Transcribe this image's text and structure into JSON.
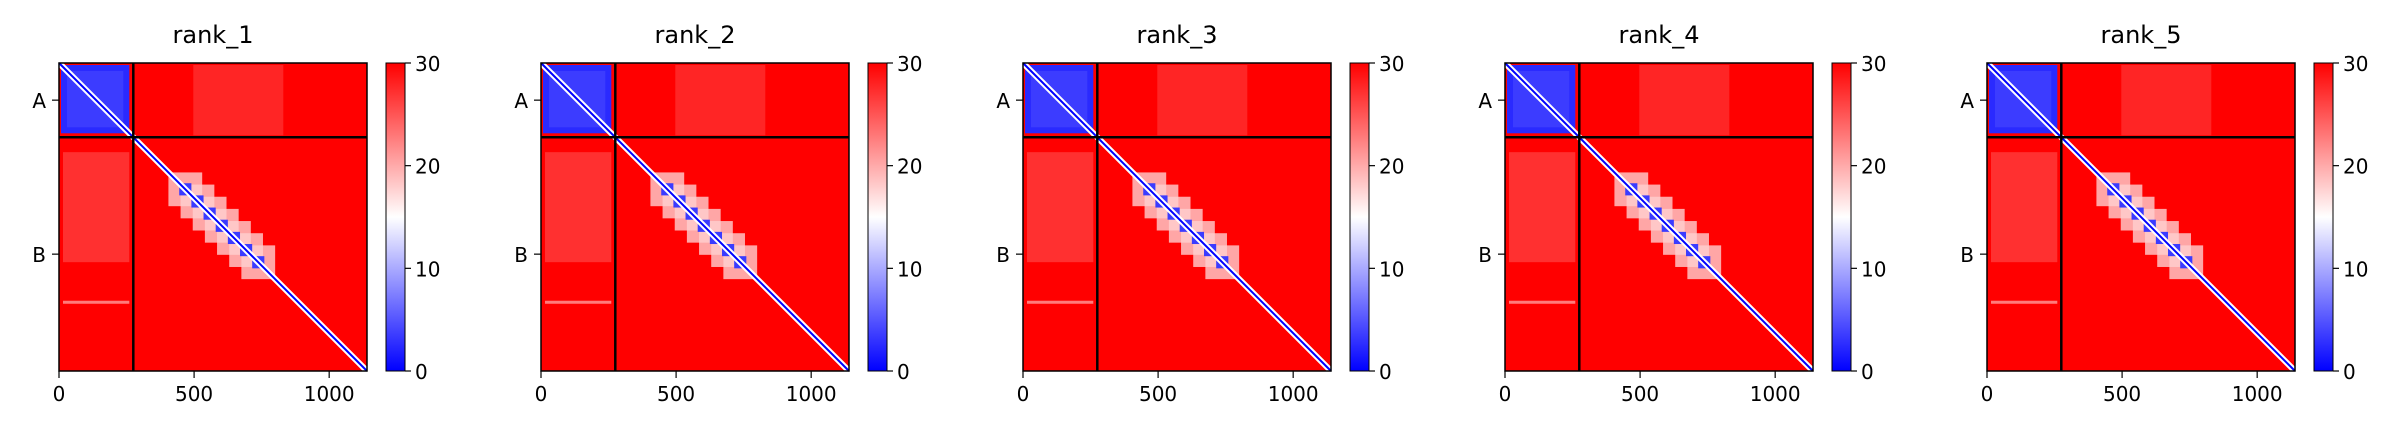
{
  "colors": {
    "low": "#0000ff",
    "mid": "#ffffff",
    "high": "#ff0000",
    "frame": "#000000",
    "background": "#ffffff"
  },
  "chart_data": [
    {
      "type": "heatmap",
      "title": "rank_1",
      "xlabel": "",
      "ylabel": "",
      "x_ticks": [
        0,
        500,
        1000
      ],
      "xlim": [
        0,
        1140
      ],
      "n_residues": 1140,
      "chain_boundary": 275,
      "y_tick_labels": [
        "A",
        "B"
      ],
      "colorbar": {
        "min": 0,
        "max": 30,
        "ticks": [
          0,
          10,
          20,
          30
        ]
      },
      "domain_blocks": [
        [
          0,
          275
        ],
        [
          445,
          760
        ]
      ],
      "gridlines": false
    },
    {
      "type": "heatmap",
      "title": "rank_2",
      "xlabel": "",
      "ylabel": "",
      "x_ticks": [
        0,
        500,
        1000
      ],
      "xlim": [
        0,
        1140
      ],
      "n_residues": 1140,
      "chain_boundary": 275,
      "y_tick_labels": [
        "A",
        "B"
      ],
      "colorbar": {
        "min": 0,
        "max": 30,
        "ticks": [
          0,
          10,
          20,
          30
        ]
      },
      "domain_blocks": [
        [
          0,
          275
        ],
        [
          445,
          760
        ]
      ],
      "gridlines": false
    },
    {
      "type": "heatmap",
      "title": "rank_3",
      "xlabel": "",
      "ylabel": "",
      "x_ticks": [
        0,
        500,
        1000
      ],
      "xlim": [
        0,
        1140
      ],
      "n_residues": 1140,
      "chain_boundary": 275,
      "y_tick_labels": [
        "A",
        "B"
      ],
      "colorbar": {
        "min": 0,
        "max": 30,
        "ticks": [
          0,
          10,
          20,
          30
        ]
      },
      "domain_blocks": [
        [
          0,
          275
        ],
        [
          445,
          760
        ]
      ],
      "gridlines": false
    },
    {
      "type": "heatmap",
      "title": "rank_4",
      "xlabel": "",
      "ylabel": "",
      "x_ticks": [
        0,
        500,
        1000
      ],
      "xlim": [
        0,
        1140
      ],
      "n_residues": 1140,
      "chain_boundary": 275,
      "y_tick_labels": [
        "A",
        "B"
      ],
      "colorbar": {
        "min": 0,
        "max": 30,
        "ticks": [
          0,
          10,
          20,
          30
        ]
      },
      "domain_blocks": [
        [
          0,
          275
        ],
        [
          445,
          760
        ]
      ],
      "gridlines": false
    },
    {
      "type": "heatmap",
      "title": "rank_5",
      "xlabel": "",
      "ylabel": "",
      "x_ticks": [
        0,
        500,
        1000
      ],
      "xlim": [
        0,
        1140
      ],
      "n_residues": 1140,
      "chain_boundary": 275,
      "y_tick_labels": [
        "A",
        "B"
      ],
      "colorbar": {
        "min": 0,
        "max": 30,
        "ticks": [
          0,
          10,
          20,
          30
        ]
      },
      "domain_blocks": [
        [
          0,
          275
        ],
        [
          445,
          760
        ]
      ],
      "gridlines": false
    }
  ]
}
